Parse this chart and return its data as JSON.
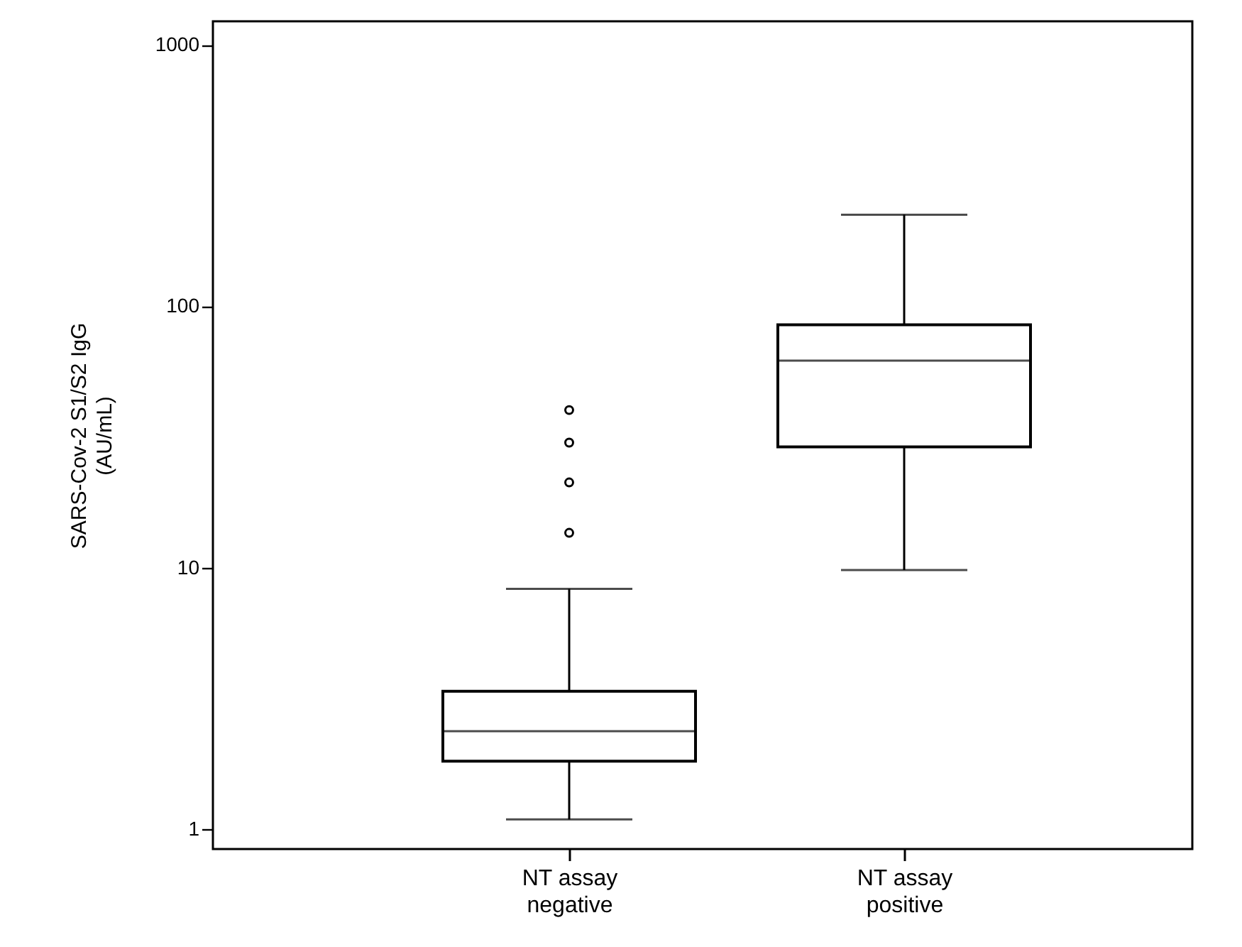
{
  "chart_data": {
    "type": "box",
    "ylabel": "SARS-Cov-2 S1/S2 IgG (AU/mL)",
    "categories": [
      "NT assay negative",
      "NT assay positive"
    ],
    "boxes": [
      {
        "low": 1.09,
        "q1": 1.82,
        "median": 2.37,
        "q3": 3.37,
        "high": 8.3,
        "outliers": [
          13.6,
          21.2,
          30.1,
          40.1
        ]
      },
      {
        "low": 9.8,
        "q1": 29,
        "median": 62,
        "q3": 85,
        "high": 224
      }
    ],
    "log": true,
    "ylim": [
      0.84,
      1230
    ],
    "yticks": [
      1,
      10,
      100,
      1000
    ],
    "grid": false
  }
}
